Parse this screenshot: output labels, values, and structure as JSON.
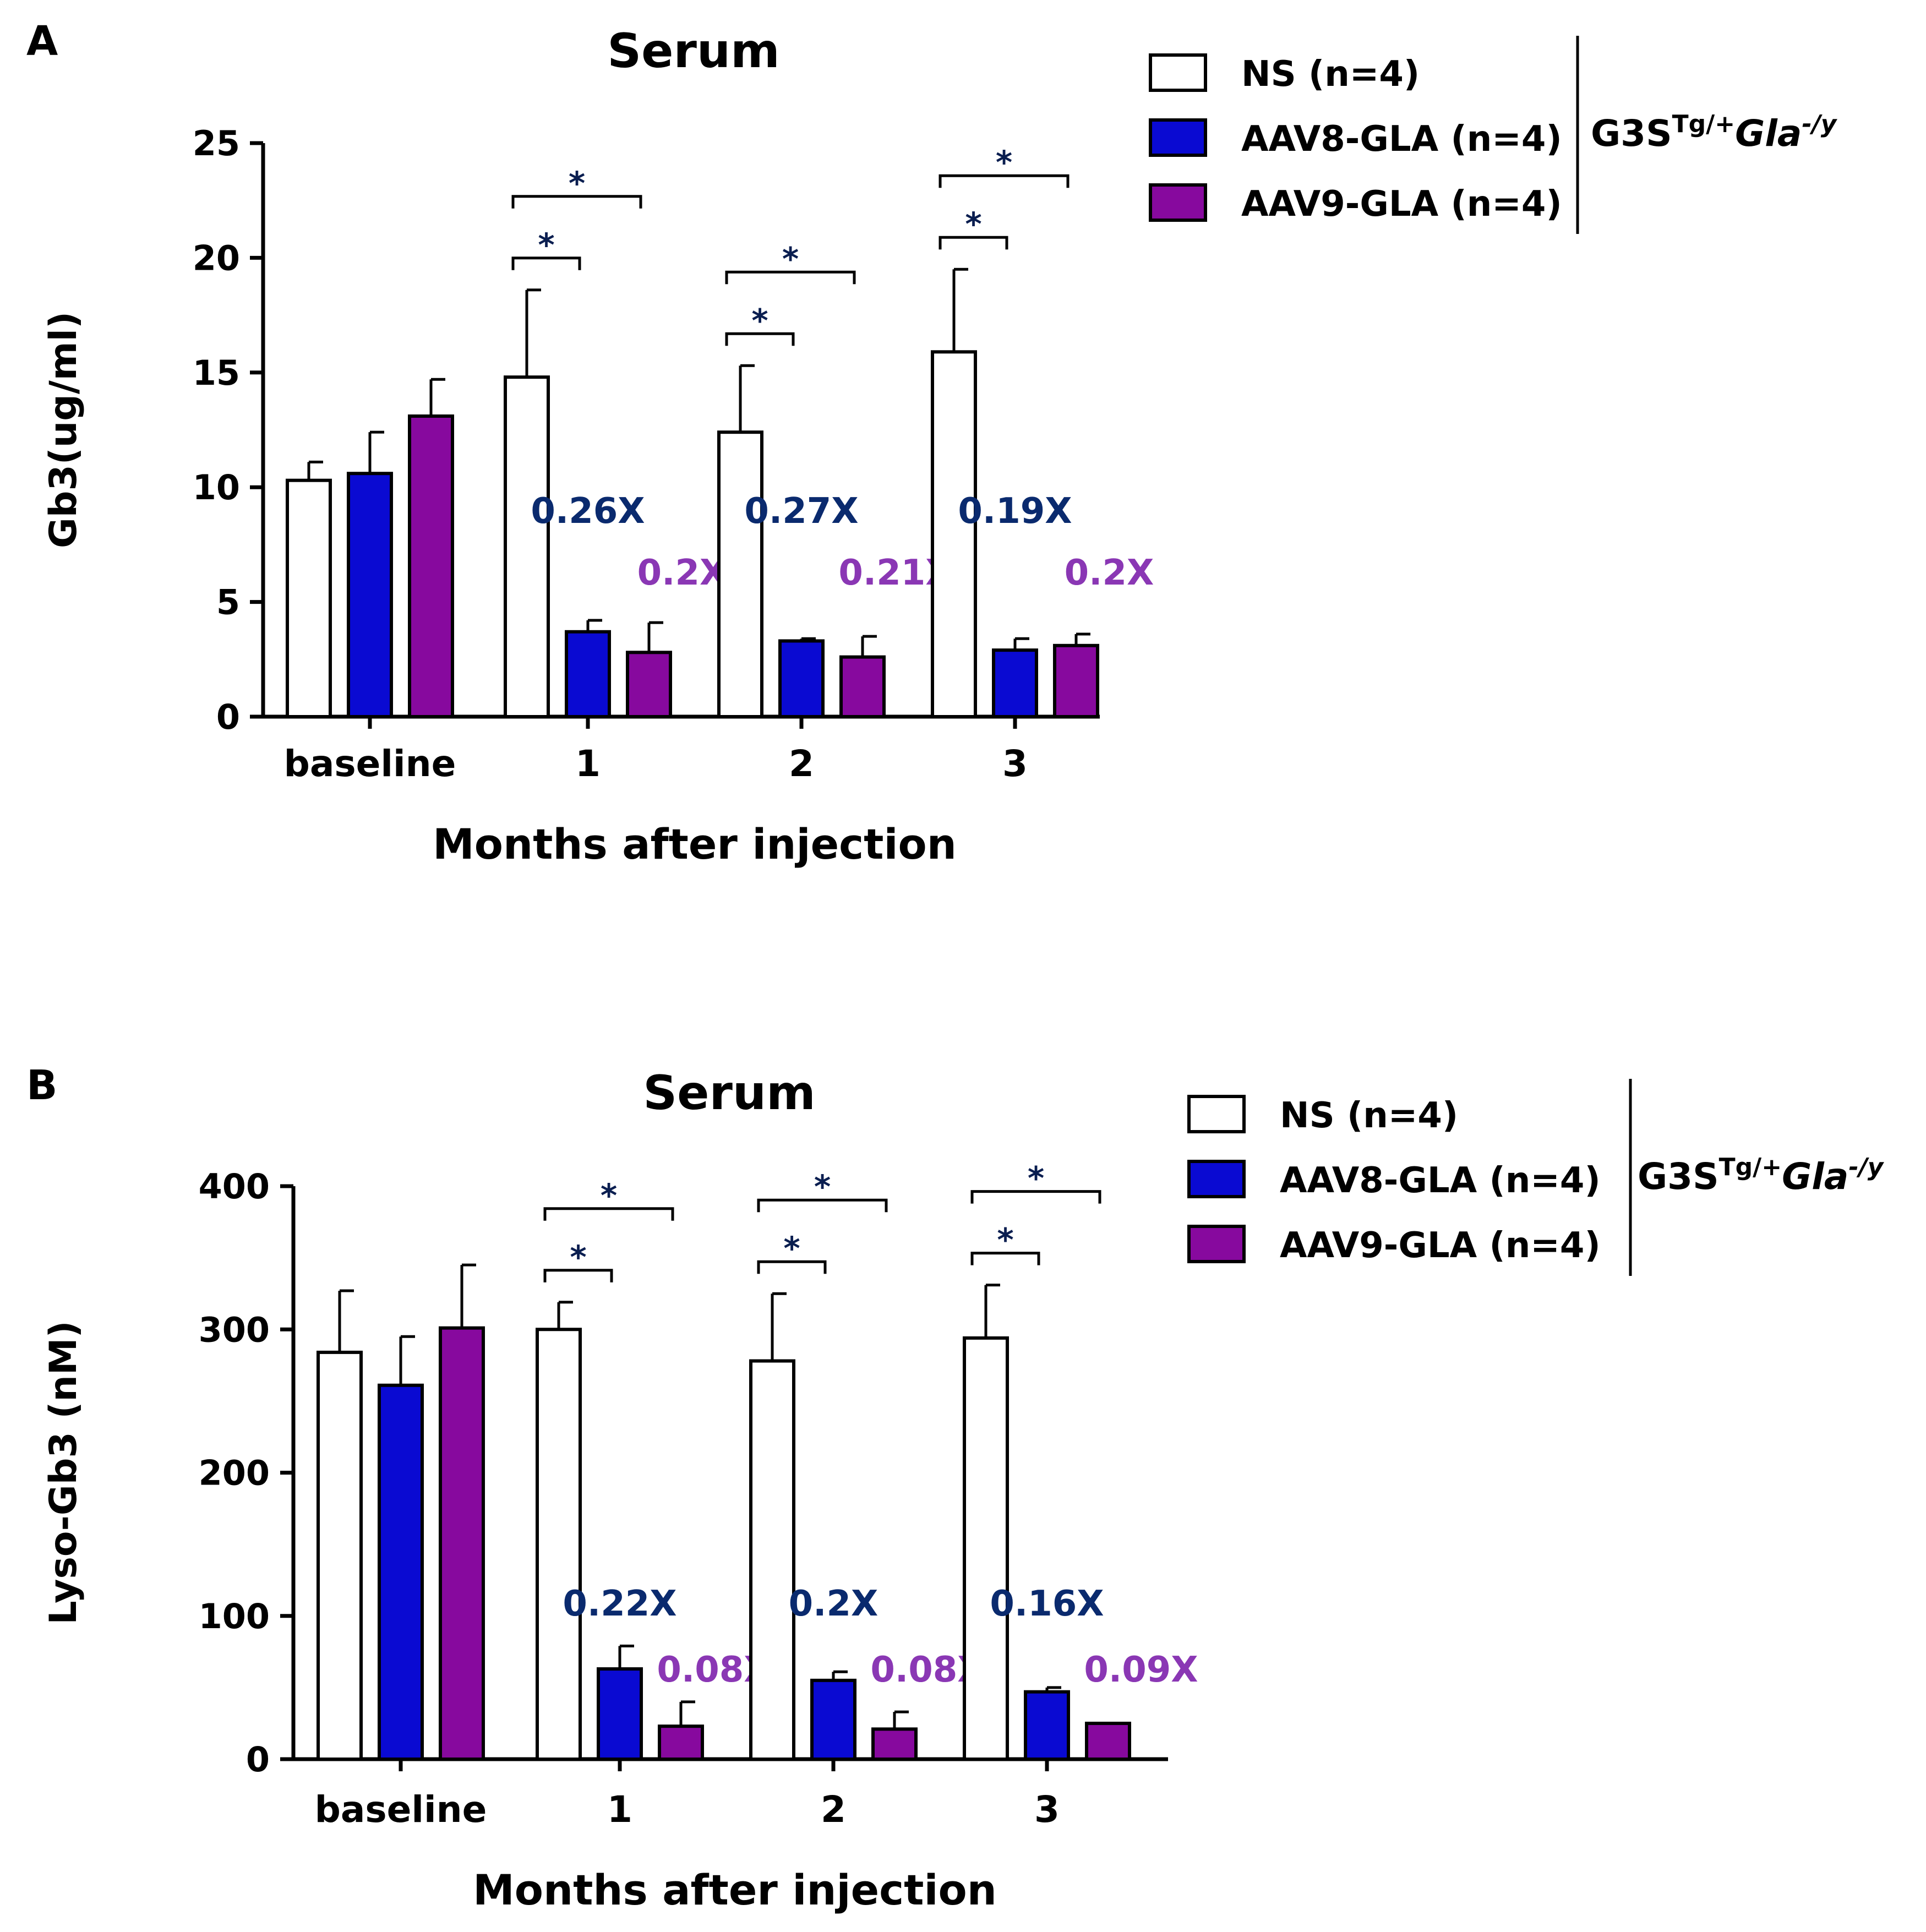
{
  "chart_data": [
    {
      "panel_label": "A",
      "type": "bar",
      "title": "Serum",
      "xlabel": "Months after injection",
      "ylabel": "Gb3(ug/ml)",
      "ylim": [
        0,
        25
      ],
      "yticks": [
        "0",
        "5",
        "10",
        "15",
        "20",
        "25"
      ],
      "categories": [
        "baseline",
        "1",
        "2",
        "3"
      ],
      "series": [
        {
          "name": "NS (n=4)",
          "color": "#ffffff",
          "values": [
            10.3,
            14.8,
            12.4,
            15.9
          ],
          "errors": [
            0.8,
            3.8,
            2.9,
            3.6
          ]
        },
        {
          "name": "AAV8-GLA (n=4)",
          "color": "#0a0ad2",
          "values": [
            10.6,
            3.7,
            3.3,
            2.9
          ],
          "errors": [
            1.8,
            0.5,
            0.1,
            0.5
          ]
        },
        {
          "name": "AAV9-GLA (n=4)",
          "color": "#87099e",
          "values": [
            13.1,
            2.8,
            2.6,
            3.1
          ],
          "errors": [
            1.6,
            1.3,
            0.9,
            0.5
          ]
        }
      ],
      "fold_labels": [
        {
          "category": "1",
          "aav8": "0.26X",
          "aav9": "0.2X"
        },
        {
          "category": "2",
          "aav8": "0.27X",
          "aav9": "0.21X"
        },
        {
          "category": "3",
          "aav8": "0.19X",
          "aav9": "0.2X"
        }
      ],
      "significance": [
        {
          "category": "1",
          "pairs": [
            {
              "between": [
                "NS (n=4)",
                "AAV8-GLA (n=4)"
              ],
              "label": "*"
            },
            {
              "between": [
                "NS (n=4)",
                "AAV9-GLA (n=4)"
              ],
              "label": "*"
            }
          ]
        },
        {
          "category": "2",
          "pairs": [
            {
              "between": [
                "NS (n=4)",
                "AAV8-GLA (n=4)"
              ],
              "label": "*"
            },
            {
              "between": [
                "NS (n=4)",
                "AAV9-GLA (n=4)"
              ],
              "label": "*"
            }
          ]
        },
        {
          "category": "3",
          "pairs": [
            {
              "between": [
                "NS (n=4)",
                "AAV8-GLA (n=4)"
              ],
              "label": "*"
            },
            {
              "between": [
                "NS (n=4)",
                "AAV9-GLA (n=4)"
              ],
              "label": "*"
            }
          ]
        }
      ],
      "genotype": {
        "base": "G3S",
        "sup1": "Tg/+",
        "italic": "Gla",
        "sup2": "-/y"
      }
    },
    {
      "panel_label": "B",
      "type": "bar",
      "title": "Serum",
      "xlabel": "Months after injection",
      "ylabel": "Lyso-Gb3 (nM)",
      "ylim": [
        0,
        400
      ],
      "yticks": [
        "0",
        "100",
        "200",
        "300",
        "400"
      ],
      "categories": [
        "baseline",
        "1",
        "2",
        "3"
      ],
      "series": [
        {
          "name": "NS (n=4)",
          "color": "#ffffff",
          "values": [
            284,
            300,
            278,
            294
          ],
          "errors": [
            43,
            19,
            47,
            37
          ]
        },
        {
          "name": "AAV8-GLA (n=4)",
          "color": "#0a0ad2",
          "values": [
            261,
            63,
            55,
            47
          ],
          "errors": [
            34,
            16,
            6,
            3
          ]
        },
        {
          "name": "AAV9-GLA (n=4)",
          "color": "#87099e",
          "values": [
            301,
            23,
            21,
            25
          ],
          "errors": [
            44,
            17,
            12,
            0
          ]
        }
      ],
      "fold_labels": [
        {
          "category": "1",
          "aav8": "0.22X",
          "aav9": "0.08X"
        },
        {
          "category": "2",
          "aav8": "0.2X",
          "aav9": "0.08X"
        },
        {
          "category": "3",
          "aav8": "0.16X",
          "aav9": "0.09X"
        }
      ],
      "significance": [
        {
          "category": "1",
          "pairs": [
            {
              "between": [
                "NS (n=4)",
                "AAV8-GLA (n=4)"
              ],
              "label": "*"
            },
            {
              "between": [
                "NS (n=4)",
                "AAV9-GLA (n=4)"
              ],
              "label": "*"
            }
          ]
        },
        {
          "category": "2",
          "pairs": [
            {
              "between": [
                "NS (n=4)",
                "AAV8-GLA (n=4)"
              ],
              "label": "*"
            },
            {
              "between": [
                "NS (n=4)",
                "AAV9-GLA (n=4)"
              ],
              "label": "*"
            }
          ]
        },
        {
          "category": "3",
          "pairs": [
            {
              "between": [
                "NS (n=4)",
                "AAV8-GLA (n=4)"
              ],
              "label": "*"
            },
            {
              "between": [
                "NS (n=4)",
                "AAV9-GLA (n=4)"
              ],
              "label": "*"
            }
          ]
        }
      ],
      "genotype": {
        "base": "G3S",
        "sup1": "Tg/+",
        "italic": "Gla",
        "sup2": "-/y"
      }
    }
  ],
  "colors": {
    "fold_aav8": "#0a2a6e",
    "fold_aav9": "#8a37b4",
    "axis": "#000000",
    "sig": "#0a1e50"
  }
}
